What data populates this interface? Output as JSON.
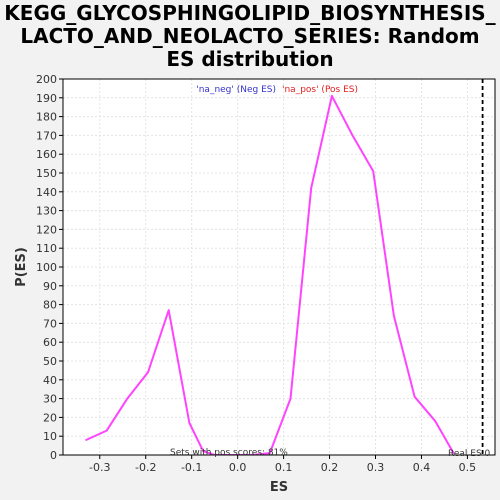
{
  "title": "KEGG_GLYCOSPHINGOLIPID_BIOSYNTHESIS_LACTO_AND_NEOLACTO_SERIES: Random ES distribution",
  "title_lines": [
    "KEGG_GLYCOSPHINGOLIPID_BIOSYNTHESIS_",
    "LACTO_AND_NEOLACTO_SERIES: Random",
    "ES distribution"
  ],
  "chart_data": {
    "type": "line",
    "xlabel": "ES",
    "ylabel": "P(ES)",
    "xlim": [
      -0.38,
      0.56
    ],
    "ylim": [
      0,
      200
    ],
    "xticks": [
      -0.3,
      -0.2,
      -0.1,
      0.0,
      0.1,
      0.2,
      0.3,
      0.4,
      0.5
    ],
    "xtick_labels": [
      "-0.3",
      "-0.2",
      "-0.1",
      "0.0",
      "0.1",
      "0.2",
      "0.3",
      "0.4",
      "0.5"
    ],
    "yticks": [
      0,
      10,
      20,
      30,
      40,
      50,
      60,
      70,
      80,
      90,
      100,
      110,
      120,
      130,
      140,
      150,
      160,
      170,
      180,
      190,
      200
    ],
    "grid": true,
    "series": [
      {
        "color": "#ff44ff",
        "x": [
          -0.33,
          -0.285,
          -0.24,
          -0.195,
          -0.15,
          -0.105,
          -0.075,
          -0.05,
          0.0,
          0.03,
          0.07,
          0.115,
          0.16,
          0.205,
          0.25,
          0.295,
          0.34,
          0.385,
          0.43,
          0.47
        ],
        "y": [
          8,
          13,
          30,
          44,
          77,
          17,
          2,
          0,
          0,
          0,
          1,
          30,
          142,
          191,
          170,
          151,
          74,
          31,
          18,
          1
        ]
      }
    ],
    "vline": {
      "x": 0.533,
      "color": "#000000",
      "style": "dashed"
    },
    "legend": {
      "neg_label": "'na_neg' (Neg ES)",
      "neg_color": "#3333cc",
      "pos_label": "'na_pos' (Pos ES)",
      "pos_color": "#e02020"
    },
    "annotations": {
      "pos_scores": "Sets with pos scores: 81%",
      "real_es": "Real ES 0"
    }
  }
}
